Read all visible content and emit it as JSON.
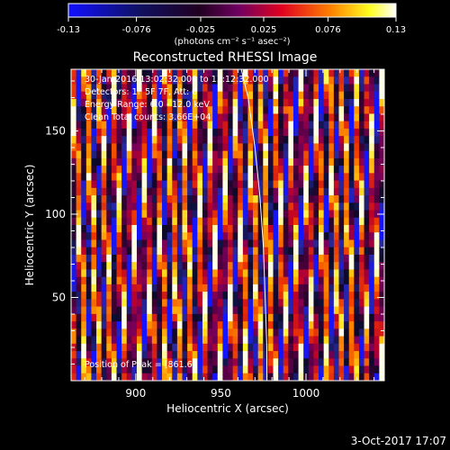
{
  "chart_data": {
    "type": "heatmap",
    "title": "Reconstructed RHESSI Image",
    "xlabel": "Heliocentric X (arcsec)",
    "ylabel": "Heliocentric Y (arcsec)",
    "xlim": [
      862,
      1046
    ],
    "ylim": [
      0,
      187
    ],
    "x_ticks": [
      900,
      950,
      1000
    ],
    "y_ticks": [
      50,
      100,
      150
    ],
    "colorbar": {
      "label": "(photons cm⁻² s⁻¹ asec⁻²)",
      "range": [
        -0.13,
        0.13
      ],
      "ticks": [
        "-0.13",
        "-0.076",
        "-0.025",
        "0.025",
        "0.076",
        "0.13"
      ]
    },
    "annotations": [
      "30-Jan-2016 13:02:32.000 to 13:12:32.000",
      "Detectors: 1F 5F 7F, Att: 0",
      "Energy Range: 6.0 - 12.0 keV",
      "Clean    Total counts: 3.66E+04"
    ],
    "peak_label": "Position of Peak = [861.6]",
    "limb_curve": [
      [
        962,
        187
      ],
      [
        966,
        170
      ],
      [
        970,
        140
      ],
      [
        973,
        110
      ],
      [
        975,
        80
      ],
      [
        976,
        50
      ],
      [
        977,
        20
      ],
      [
        977,
        0
      ]
    ],
    "stripes": {
      "period_arcsec": 7.9,
      "tilt": 0.045,
      "rows": 42,
      "cols": 62
    },
    "colors": [
      "#0000ff",
      "#000000",
      "#800080",
      "#ff0000",
      "#ffa500",
      "#ffff00",
      "#ffffff"
    ]
  },
  "footer": {
    "date": "3-Oct-2017 17:07"
  }
}
